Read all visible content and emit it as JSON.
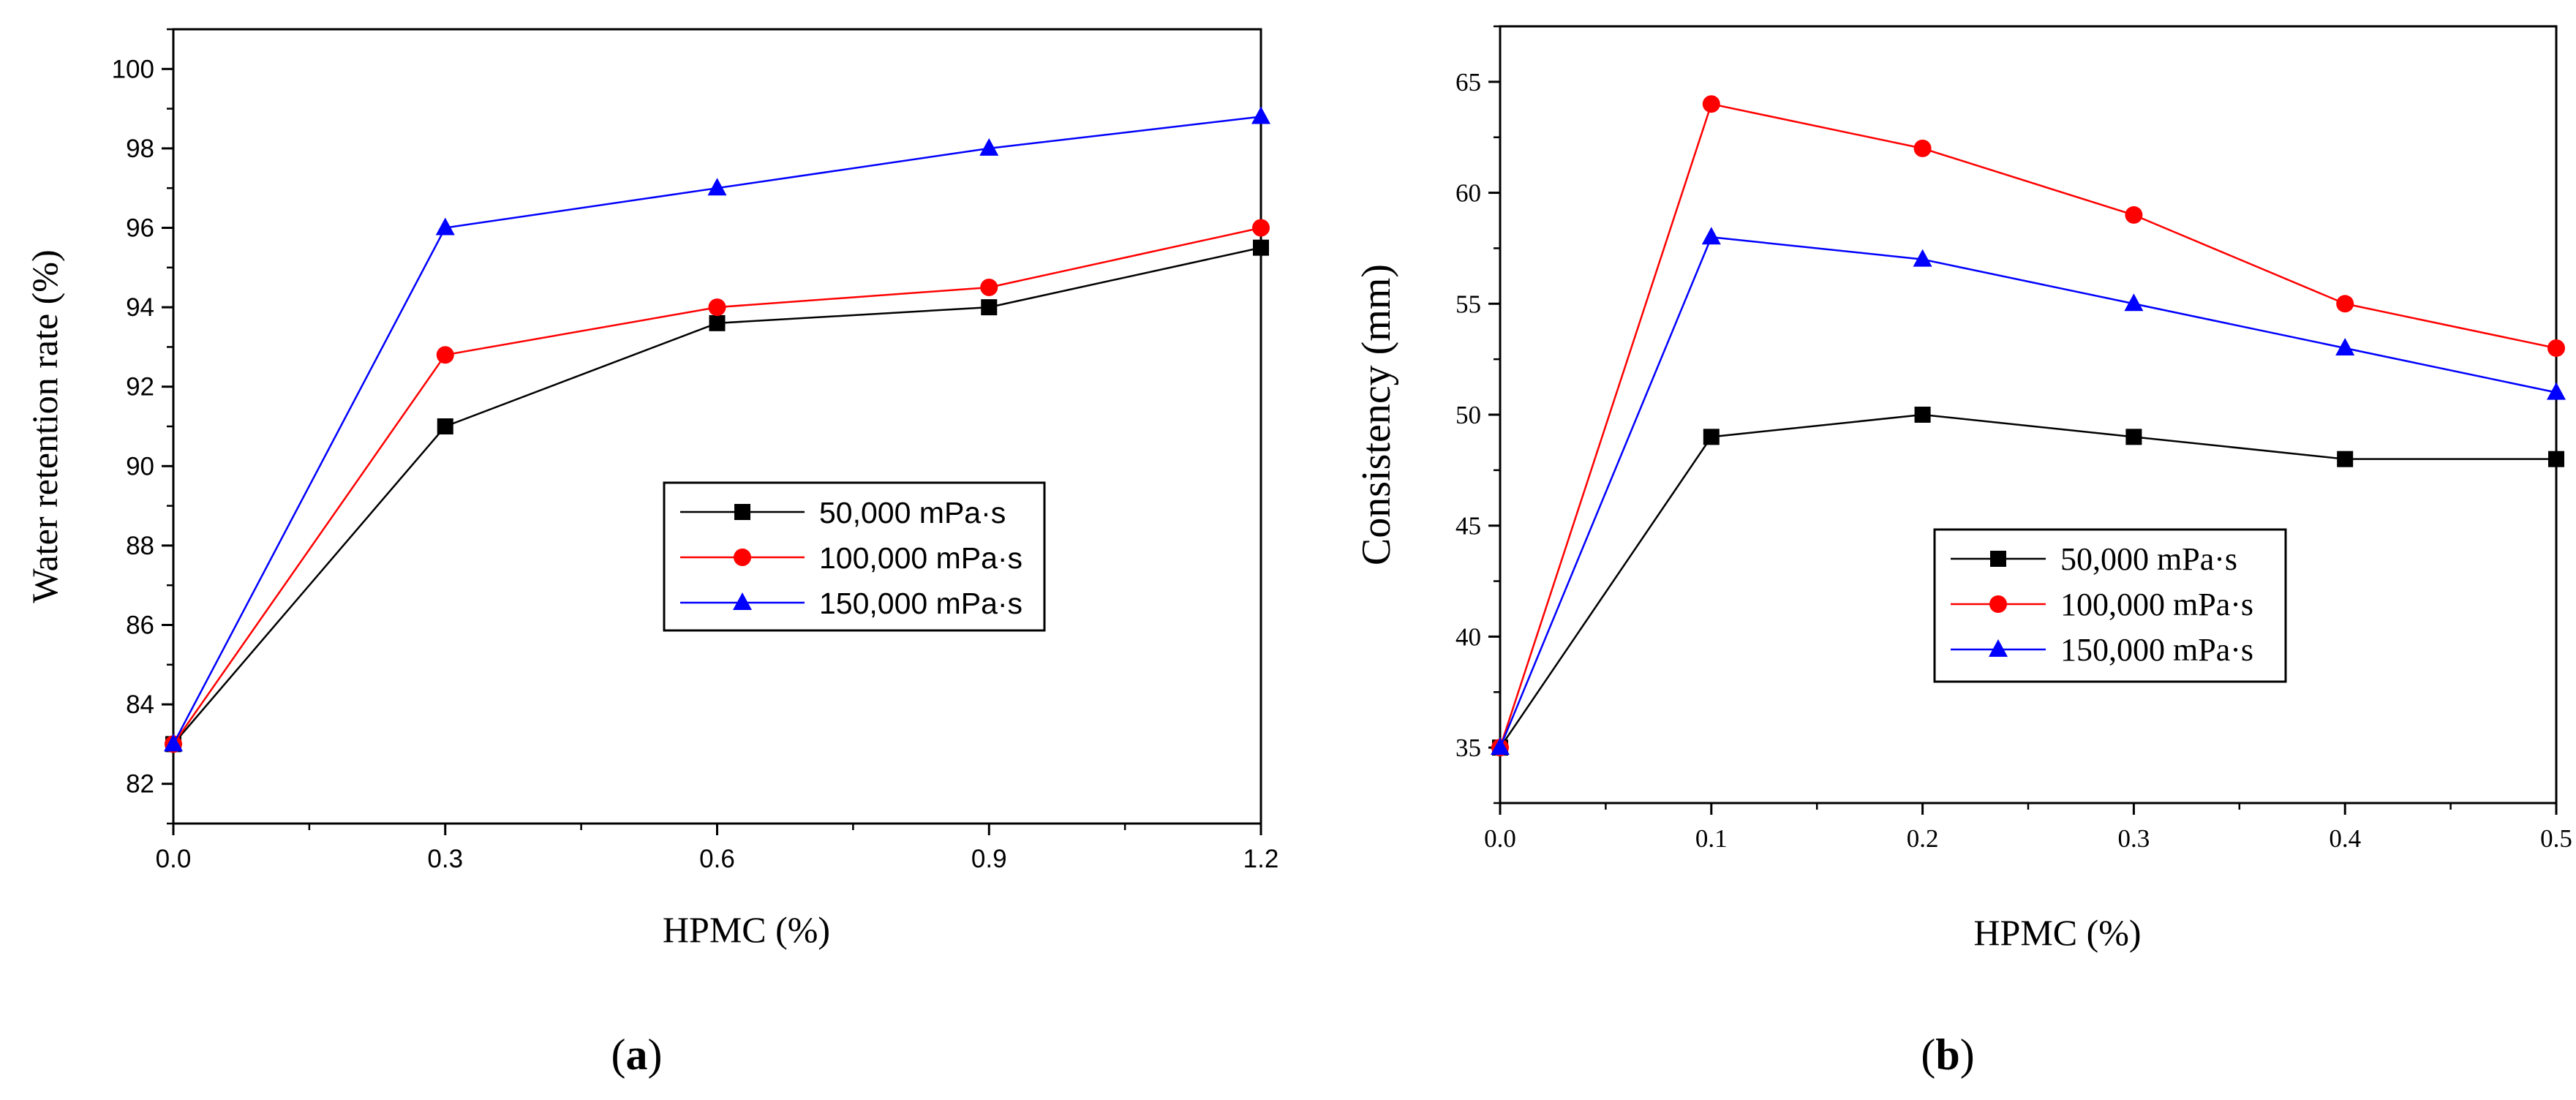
{
  "chart_data": [
    {
      "type": "line",
      "panel_label": "(a)",
      "panel_letter": "a",
      "xlabel": "HPMC (%)",
      "ylabel": "Water retention rate (%)",
      "xlim": [
        0,
        1.2
      ],
      "ylim": [
        81,
        101
      ],
      "x": [
        0.0,
        0.3,
        0.6,
        0.9,
        1.2
      ],
      "xticks": [
        "0.0",
        "0.3",
        "0.6",
        "0.9",
        "1.2"
      ],
      "yticks": [
        "82",
        "84",
        "86",
        "88",
        "90",
        "92",
        "94",
        "96",
        "98",
        "100"
      ],
      "legend_position": "center-right",
      "series": [
        {
          "name": "50,000 mPa·s",
          "marker": "square",
          "color": "#000000",
          "values": [
            83.0,
            91.0,
            93.6,
            94.0,
            95.5
          ]
        },
        {
          "name": "100,000 mPa·s",
          "marker": "circle",
          "color": "#ff0000",
          "values": [
            83.0,
            92.8,
            94.0,
            94.5,
            96.0
          ]
        },
        {
          "name": "150,000 mPa·s",
          "marker": "triangle",
          "color": "#0000ff",
          "values": [
            83.0,
            96.0,
            97.0,
            98.0,
            98.8
          ]
        }
      ]
    },
    {
      "type": "line",
      "panel_label": "(b)",
      "panel_letter": "b",
      "xlabel": "HPMC (%)",
      "ylabel": "Consistency (mm)",
      "xlim": [
        0,
        0.5
      ],
      "ylim": [
        32.5,
        67.5
      ],
      "x": [
        0.0,
        0.1,
        0.2,
        0.3,
        0.4,
        0.5
      ],
      "xticks": [
        "0.0",
        "0.1",
        "0.2",
        "0.3",
        "0.4",
        "0.5"
      ],
      "yticks": [
        "35",
        "40",
        "45",
        "50",
        "55",
        "60",
        "65"
      ],
      "legend_position": "center-right",
      "series": [
        {
          "name": "50,000 mPa·s",
          "marker": "square",
          "color": "#000000",
          "values": [
            35,
            49,
            50,
            49,
            48,
            48
          ]
        },
        {
          "name": "100,000 mPa·s",
          "marker": "circle",
          "color": "#ff0000",
          "values": [
            35,
            64,
            62,
            59,
            55,
            53
          ]
        },
        {
          "name": "150,000 mPa·s",
          "marker": "triangle",
          "color": "#0000ff",
          "values": [
            35,
            58,
            57,
            55,
            53,
            51
          ]
        }
      ]
    }
  ]
}
